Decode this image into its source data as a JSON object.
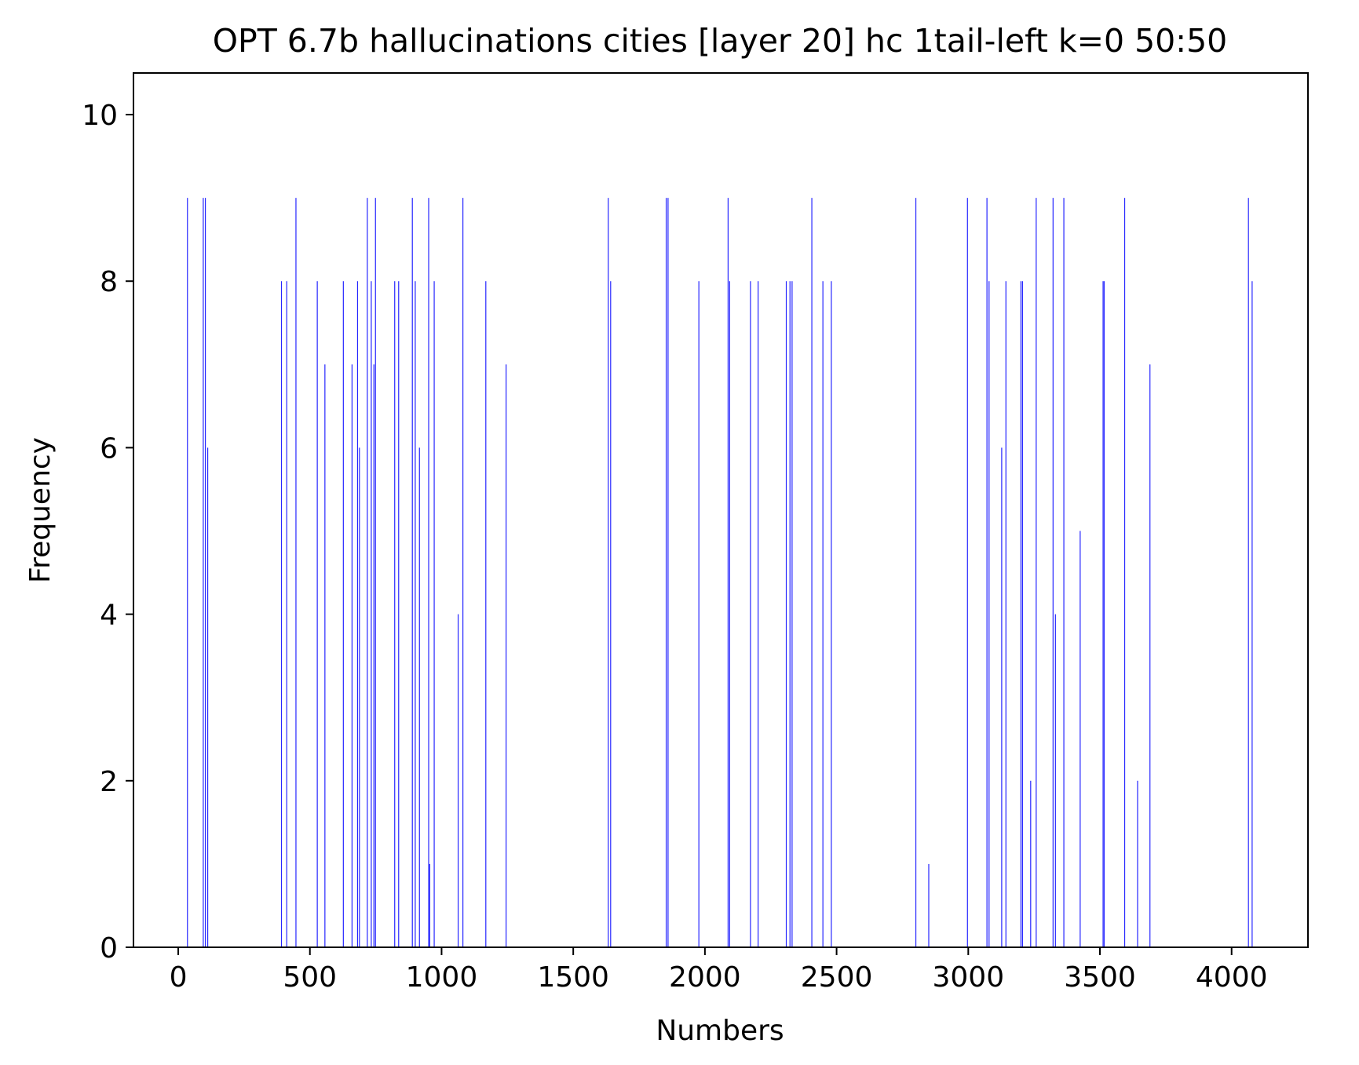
{
  "chart_data": {
    "type": "bar",
    "title": "OPT 6.7b hallucinations cities [layer 20] hc 1tail-left k=0 50:50",
    "xlabel": "Numbers",
    "ylabel": "Frequency",
    "xlim": [
      -170,
      4290
    ],
    "ylim": [
      0,
      10.5
    ],
    "xticks": [
      0,
      500,
      1000,
      1500,
      2000,
      2500,
      3000,
      3500,
      4000
    ],
    "yticks": [
      0,
      2,
      4,
      6,
      8,
      10
    ],
    "grid": false,
    "bar_color": "#0000ff",
    "x": [
      35,
      95,
      103,
      112,
      392,
      412,
      447,
      528,
      557,
      627,
      660,
      681,
      688,
      718,
      733,
      743,
      749,
      822,
      837,
      889,
      900,
      916,
      951,
      955,
      972,
      1063,
      1081,
      1168,
      1245,
      1633,
      1642,
      1853,
      1860,
      1977,
      2088,
      2094,
      2173,
      2202,
      2309,
      2323,
      2331,
      2406,
      2448,
      2480,
      2801,
      2850,
      2997,
      3071,
      3079,
      3127,
      3143,
      3200,
      3206,
      3237,
      3258,
      3322,
      3331,
      3363,
      3425,
      3512,
      3516,
      3594,
      3643,
      3690,
      4064,
      4078
    ],
    "values": [
      9,
      9,
      9,
      6,
      8,
      8,
      9,
      8,
      7,
      8,
      7,
      8,
      6,
      9,
      8,
      7,
      9,
      8,
      8,
      9,
      8,
      6,
      9,
      1,
      8,
      4,
      9,
      8,
      7,
      9,
      8,
      9,
      9,
      8,
      9,
      8,
      8,
      8,
      8,
      8,
      8,
      9,
      8,
      8,
      9,
      1,
      9,
      9,
      8,
      6,
      8,
      8,
      8,
      2,
      9,
      9,
      4,
      9,
      5,
      8,
      8,
      9,
      2,
      7,
      9,
      8
    ]
  }
}
